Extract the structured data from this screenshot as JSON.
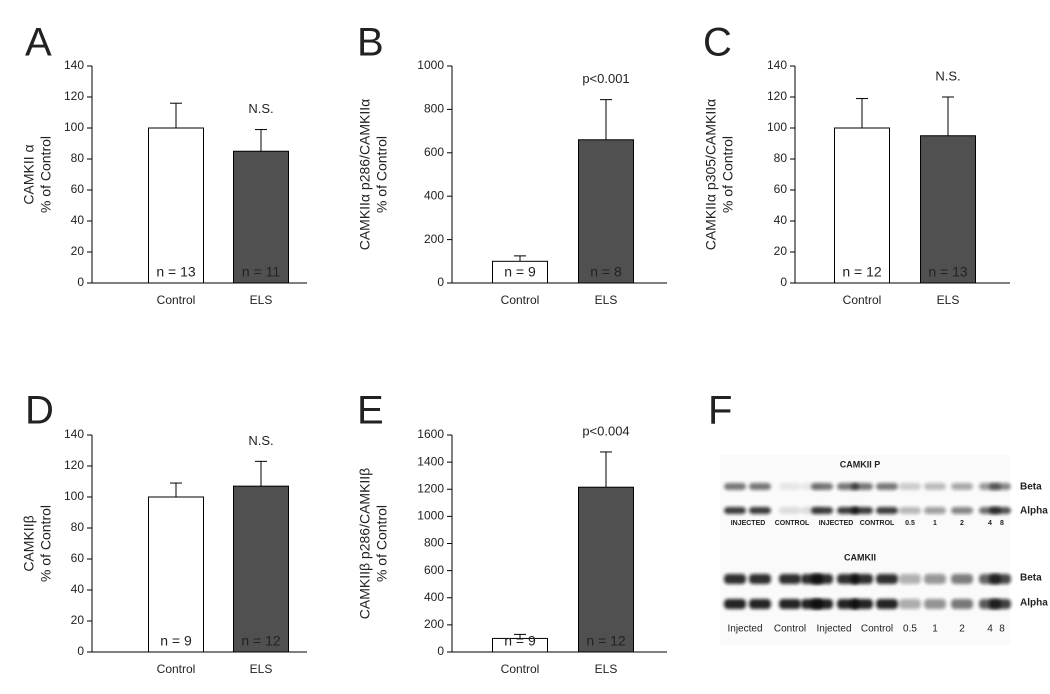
{
  "chart_data": [
    {
      "type": "bar",
      "panel": "A",
      "ylabel": [
        "CAMKII α",
        "% of Control"
      ],
      "categories": [
        "Control",
        "ELS"
      ],
      "values": [
        100,
        85
      ],
      "errors": [
        16,
        14
      ],
      "colors": [
        "#ffffff",
        "#505050"
      ],
      "bar_labels": [
        "n = 13",
        "n = 11"
      ],
      "annotation": "N.S.",
      "ylim": [
        0,
        140
      ],
      "yticks": [
        0,
        20,
        40,
        60,
        80,
        100,
        120,
        140
      ]
    },
    {
      "type": "bar",
      "panel": "B",
      "ylabel": [
        "CAMKIIα p286/CAMKIIα",
        "% of Control"
      ],
      "categories": [
        "Control",
        "ELS"
      ],
      "values": [
        100,
        660
      ],
      "errors": [
        25,
        185
      ],
      "colors": [
        "#ffffff",
        "#505050"
      ],
      "bar_labels": [
        "n = 9",
        "n = 8"
      ],
      "annotation": "p<0.001",
      "ylim": [
        0,
        1000
      ],
      "yticks": [
        0,
        200,
        400,
        600,
        800,
        1000
      ]
    },
    {
      "type": "bar",
      "panel": "C",
      "ylabel": [
        "CAMKIIα p305/CAMKIIα",
        "% of Control"
      ],
      "categories": [
        "Control",
        "ELS"
      ],
      "values": [
        100,
        95
      ],
      "errors": [
        19,
        25
      ],
      "colors": [
        "#ffffff",
        "#505050"
      ],
      "bar_labels": [
        "n = 12",
        "n = 13"
      ],
      "annotation": "N.S.",
      "ylim": [
        0,
        140
      ],
      "yticks": [
        0,
        20,
        40,
        60,
        80,
        100,
        120,
        140
      ]
    },
    {
      "type": "bar",
      "panel": "D",
      "ylabel": [
        "CAMKIIβ",
        "% of Control"
      ],
      "categories": [
        "Control",
        "ELS"
      ],
      "values": [
        100,
        107
      ],
      "errors": [
        9,
        16
      ],
      "colors": [
        "#ffffff",
        "#505050"
      ],
      "bar_labels": [
        "n = 9",
        "n = 12"
      ],
      "annotation": "N.S.",
      "ylim": [
        0,
        140
      ],
      "yticks": [
        0,
        20,
        40,
        60,
        80,
        100,
        120,
        140
      ]
    },
    {
      "type": "bar",
      "panel": "E",
      "ylabel": [
        "CAMKIIβ p286/CAMKIIβ",
        "% of Control"
      ],
      "categories": [
        "Control",
        "ELS"
      ],
      "values": [
        100,
        1215
      ],
      "errors": [
        30,
        260
      ],
      "colors": [
        "#ffffff",
        "#505050"
      ],
      "bar_labels": [
        "n = 9",
        "n = 12"
      ],
      "annotation": "p<0.004",
      "ylim": [
        0,
        1600
      ],
      "yticks": [
        0,
        200,
        400,
        600,
        800,
        1000,
        1200,
        1400,
        1600
      ]
    }
  ],
  "blot": {
    "panel": "F",
    "blots": [
      {
        "title": "CAMKII P",
        "bands": [
          "Beta",
          "Alpha"
        ],
        "lanes": [
          "INJECTED",
          "CONTROL",
          "INJECTED",
          "CONTROL",
          "0.5",
          "1",
          "2",
          "4",
          "8"
        ]
      },
      {
        "title": "CAMKII",
        "bands": [
          "Beta",
          "Alpha"
        ],
        "lanes": [
          "Injected",
          "Control",
          "Injected",
          "Control",
          "0.5",
          "1",
          "2",
          "4",
          "8"
        ]
      }
    ]
  }
}
